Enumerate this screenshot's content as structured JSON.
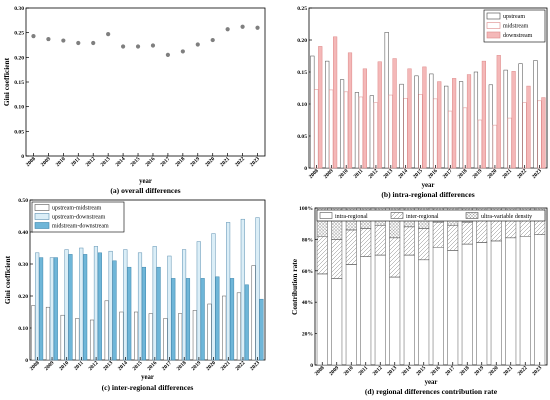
{
  "chart_data": [
    {
      "type": "scatter",
      "caption": "(a) overall differences",
      "xlabel": "year",
      "ylabel": "Gini coefficient",
      "x": [
        "2008",
        "2009",
        "2010",
        "2011",
        "2012",
        "2013",
        "2014",
        "2015",
        "2016",
        "2017",
        "2018",
        "2019",
        "2020",
        "2021",
        "2022",
        "2023"
      ],
      "ylim": [
        0,
        0.3
      ],
      "yticks": [
        "0",
        "0.05",
        "0.10",
        "0.15",
        "0.20",
        "0.25",
        "0.30"
      ],
      "series": [
        {
          "values": [
            0.243,
            0.237,
            0.234,
            0.229,
            0.229,
            0.247,
            0.222,
            0.222,
            0.224,
            0.205,
            0.212,
            0.226,
            0.235,
            0.257,
            0.262,
            0.26
          ]
        }
      ],
      "colors": {
        "marker": "#7f7f7f"
      }
    },
    {
      "type": "bar",
      "caption": "(b) intra-regional differences",
      "xlabel": "year",
      "ylabel": "",
      "categories": [
        "2008",
        "2009",
        "2010",
        "2011",
        "2012",
        "2013",
        "2014",
        "2015",
        "2016",
        "2017",
        "2018",
        "2019",
        "2020",
        "2021",
        "2022",
        "2023"
      ],
      "ylim": [
        0,
        0.25
      ],
      "yticks": [
        "0",
        "0.05",
        "0.10",
        "0.15",
        "0.20",
        "0.25"
      ],
      "legend_position": "top-right",
      "series": [
        {
          "name": "upstream",
          "values": [
            0.175,
            0.167,
            0.138,
            0.118,
            0.113,
            0.212,
            0.131,
            0.144,
            0.147,
            0.128,
            0.135,
            0.15,
            0.13,
            0.153,
            0.163,
            0.168
          ],
          "color": "#ffffff"
        },
        {
          "name": "midstream",
          "values": [
            0.123,
            0.122,
            0.119,
            0.111,
            0.102,
            0.114,
            0.109,
            0.115,
            0.108,
            0.089,
            0.094,
            0.075,
            0.067,
            0.078,
            0.102,
            0.105
          ],
          "color": "#ffffff"
        },
        {
          "name": "downstream",
          "values": [
            0.19,
            0.205,
            0.18,
            0.155,
            0.166,
            0.171,
            0.155,
            0.158,
            0.135,
            0.14,
            0.146,
            0.167,
            0.176,
            0.151,
            0.128,
            0.11
          ],
          "color": "#f4b8b8"
        }
      ]
    },
    {
      "type": "bar",
      "caption": "(c) inter-regional differences",
      "xlabel": "year",
      "ylabel": "Gini coefficient",
      "categories": [
        "2008",
        "2009",
        "2010",
        "2011",
        "2012",
        "2013",
        "2014",
        "2015",
        "2016",
        "2017",
        "2018",
        "2019",
        "2020",
        "2021",
        "2022",
        "2023"
      ],
      "ylim": [
        0,
        0.5
      ],
      "yticks": [
        "0",
        "0.10",
        "0.20",
        "0.30",
        "0.40",
        "0.50"
      ],
      "legend_position": "top-left",
      "series": [
        {
          "name": "upstream-midstream",
          "values": [
            0.17,
            0.165,
            0.14,
            0.13,
            0.125,
            0.185,
            0.15,
            0.15,
            0.145,
            0.13,
            0.145,
            0.155,
            0.175,
            0.2,
            0.21,
            0.295
          ],
          "color": "#ffffff"
        },
        {
          "name": "upstream-downstream",
          "values": [
            0.335,
            0.32,
            0.345,
            0.35,
            0.355,
            0.34,
            0.345,
            0.335,
            0.355,
            0.325,
            0.345,
            0.37,
            0.395,
            0.43,
            0.44,
            0.445
          ],
          "color": "#dbeef7"
        },
        {
          "name": "midstream-downstream",
          "values": [
            0.32,
            0.32,
            0.33,
            0.33,
            0.335,
            0.31,
            0.29,
            0.29,
            0.29,
            0.255,
            0.255,
            0.255,
            0.26,
            0.255,
            0.235,
            0.19
          ],
          "color": "#6fb6d8"
        }
      ]
    },
    {
      "type": "bar",
      "stacked": true,
      "caption": "(d) regional differences contribution rate",
      "xlabel": "year",
      "ylabel": "Contribution rate",
      "categories": [
        "2008",
        "2009",
        "2010",
        "2011",
        "2012",
        "2013",
        "2014",
        "2015",
        "2016",
        "2017",
        "2018",
        "2019",
        "2020",
        "2021",
        "2022",
        "2023"
      ],
      "ylim": [
        0,
        100
      ],
      "yticks": [
        "0",
        "20%",
        "40%",
        "60%",
        "80%",
        "100%"
      ],
      "legend_position": "top",
      "series": [
        {
          "name": "intra-regional",
          "values": [
            58,
            55,
            64,
            69,
            70,
            56,
            70,
            67,
            75,
            73,
            77,
            78,
            79,
            81,
            82,
            83
          ],
          "pattern": "none"
        },
        {
          "name": "inter-regional",
          "values": [
            24,
            25,
            22,
            18,
            19,
            25,
            18,
            20,
            16,
            16,
            14,
            15,
            14,
            14,
            14,
            13
          ],
          "pattern": "diagonal"
        },
        {
          "name": "ultra-variable density",
          "values": [
            18,
            20,
            14,
            13,
            11,
            19,
            12,
            13,
            9,
            11,
            9,
            7,
            7,
            5,
            4,
            4
          ],
          "pattern": "cross"
        }
      ]
    }
  ]
}
